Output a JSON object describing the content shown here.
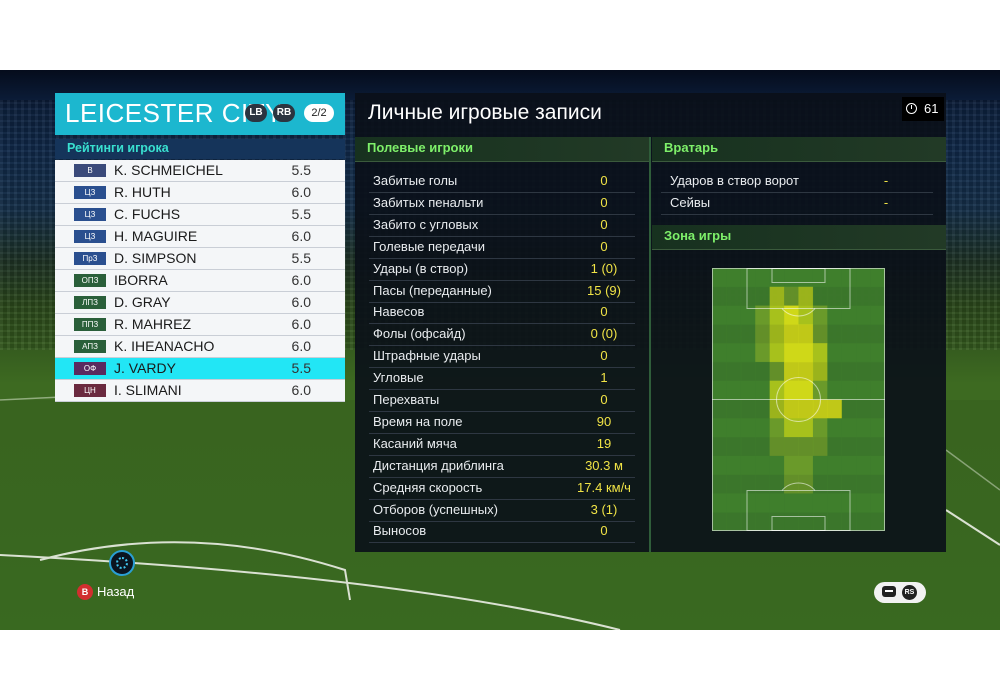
{
  "team": {
    "name": "LEICESTER CITY",
    "lb_label": "LB",
    "rb_label": "RB",
    "page": "2/2"
  },
  "ratings_header": "Рейтинги игрока",
  "players": [
    {
      "pos": "В",
      "pos_color": "#3a4a7a",
      "name": "K. SCHMEICHEL",
      "rating": "5.5"
    },
    {
      "pos": "ЦЗ",
      "pos_color": "#2a4f8f",
      "name": "R. HUTH",
      "rating": "6.0"
    },
    {
      "pos": "ЦЗ",
      "pos_color": "#2a4f8f",
      "name": "C. FUCHS",
      "rating": "5.5"
    },
    {
      "pos": "ЦЗ",
      "pos_color": "#2a4f8f",
      "name": "H. MAGUIRE",
      "rating": "6.0"
    },
    {
      "pos": "ПрЗ",
      "pos_color": "#2a4f8f",
      "name": "D. SIMPSON",
      "rating": "5.5"
    },
    {
      "pos": "ОПЗ",
      "pos_color": "#2a5f3a",
      "name": "IBORRA",
      "rating": "6.0"
    },
    {
      "pos": "ЛПЗ",
      "pos_color": "#2a5f3a",
      "name": "D. GRAY",
      "rating": "6.0"
    },
    {
      "pos": "ППЗ",
      "pos_color": "#2a5f3a",
      "name": "R. MAHREZ",
      "rating": "6.0"
    },
    {
      "pos": "АПЗ",
      "pos_color": "#2a5f3a",
      "name": "K. IHEANACHO",
      "rating": "6.0"
    },
    {
      "pos": "ОФ",
      "pos_color": "#5a2a5f",
      "name": "J. VARDY",
      "rating": "5.5",
      "selected": true
    },
    {
      "pos": "ЦН",
      "pos_color": "#6a2a3f",
      "name": "I. SLIMANI",
      "rating": "6.0"
    }
  ],
  "main_title": "Личные игровые записи",
  "timer_value": "61",
  "field_players_header": "Полевые игроки",
  "stats": [
    {
      "label": "Забитые голы",
      "value": "0"
    },
    {
      "label": "Забитых пенальти",
      "value": "0"
    },
    {
      "label": "Забито с угловых",
      "value": "0"
    },
    {
      "label": "Голевые передачи",
      "value": "0"
    },
    {
      "label": "Удары (в створ)",
      "value": "1 (0)"
    },
    {
      "label": "Пасы (переданные)",
      "value": "15 (9)"
    },
    {
      "label": "Навесов",
      "value": "0"
    },
    {
      "label": "Фолы (офсайд)",
      "value": "0 (0)"
    },
    {
      "label": "Штрафные удары",
      "value": "0"
    },
    {
      "label": "Угловые",
      "value": "1"
    },
    {
      "label": "Перехваты",
      "value": "0"
    },
    {
      "label": "Время на поле",
      "value": "90"
    },
    {
      "label": "Касаний мяча",
      "value": "19"
    },
    {
      "label": "Дистанция дриблинга",
      "value": "30.3 м"
    },
    {
      "label": "Средняя скорость",
      "value": "17.4 км/ч"
    },
    {
      "label": "Отборов (успешных)",
      "value": "3 (1)"
    },
    {
      "label": "Выносов",
      "value": "0"
    }
  ],
  "goalkeeper_header": "Вратарь",
  "goalkeeper_stats": [
    {
      "label": "Ударов в створ ворот",
      "value": "-"
    },
    {
      "label": "Сейвы",
      "value": "-"
    }
  ],
  "zone_header": "Зона игры",
  "heat_colors": {
    "low": "#3f7f2c",
    "mid": "#6a9a2a",
    "high": "#a7c11c",
    "top": "#cfd818"
  },
  "heatmap_grid": [
    [
      0,
      0,
      0,
      0,
      0,
      0,
      0,
      0,
      0,
      0,
      0,
      0
    ],
    [
      0,
      0,
      0,
      0,
      2,
      1,
      2,
      0,
      0,
      0,
      0,
      0
    ],
    [
      0,
      0,
      0,
      1,
      2,
      3,
      2,
      1,
      0,
      0,
      0,
      0
    ],
    [
      0,
      0,
      0,
      1,
      2,
      3,
      3,
      1,
      0,
      0,
      0,
      0
    ],
    [
      0,
      0,
      0,
      1,
      2,
      3,
      3,
      2,
      0,
      0,
      0,
      0
    ],
    [
      0,
      0,
      0,
      0,
      1,
      3,
      3,
      2,
      0,
      0,
      0,
      0
    ],
    [
      0,
      0,
      0,
      0,
      2,
      3,
      3,
      1,
      0,
      0,
      0,
      0
    ],
    [
      0,
      0,
      0,
      0,
      2,
      3,
      3,
      3,
      3,
      0,
      0,
      0
    ],
    [
      0,
      0,
      0,
      0,
      1,
      2,
      2,
      1,
      0,
      0,
      0,
      0
    ],
    [
      0,
      0,
      0,
      0,
      1,
      1,
      1,
      1,
      0,
      0,
      0,
      0
    ],
    [
      0,
      0,
      0,
      0,
      0,
      1,
      1,
      0,
      0,
      0,
      0,
      0
    ],
    [
      0,
      0,
      0,
      0,
      0,
      1,
      1,
      0,
      0,
      0,
      0,
      0
    ],
    [
      0,
      0,
      0,
      0,
      0,
      0,
      0,
      0,
      0,
      0,
      0,
      0
    ],
    [
      0,
      0,
      0,
      0,
      0,
      0,
      0,
      0,
      0,
      0,
      0,
      0
    ]
  ],
  "footer": {
    "back_button_glyph": "B",
    "back_label": "Назад",
    "rs_label": "RS"
  }
}
